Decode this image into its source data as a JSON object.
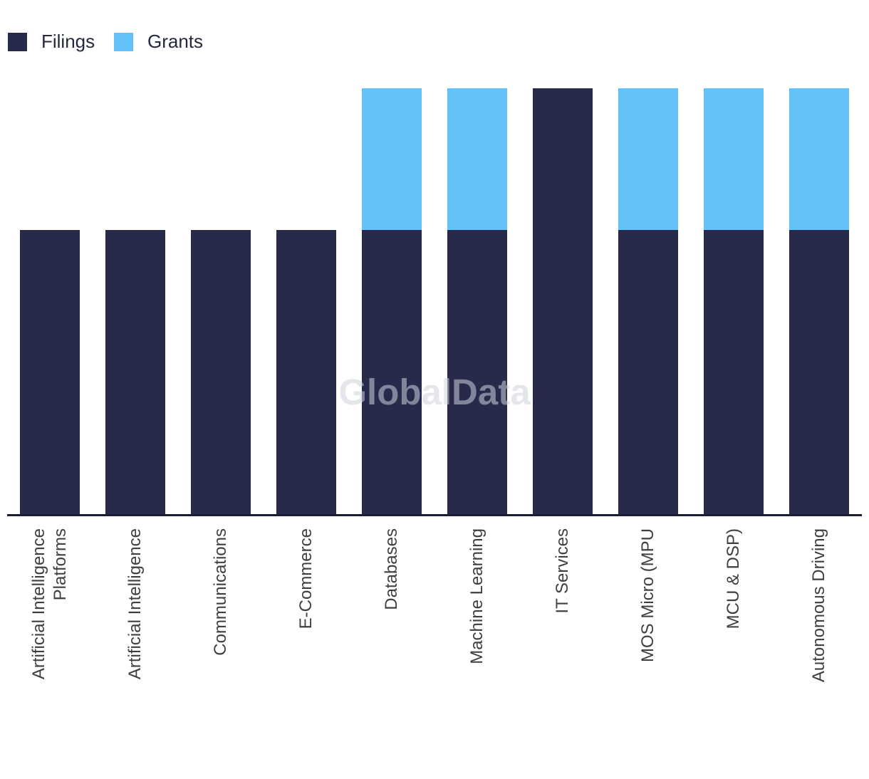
{
  "chart_data": {
    "type": "bar",
    "stacked": true,
    "title": "",
    "xlabel": "",
    "ylabel": "",
    "grid": false,
    "legend_position": "top-left",
    "watermark": "GlobalData",
    "categories": [
      "Artificial Intelligence Platforms",
      "Artificial Intelligence",
      "Communications",
      "E-Commerce",
      "Databases",
      "Machine Learning",
      "IT Services",
      "MOS Micro (MPU",
      "MCU & DSP)",
      "Autonomous Driving"
    ],
    "tick_labels": [
      "Artificial Intelligence\nPlatforms",
      "Artificial Intelligence",
      "Communications",
      "E-Commerce",
      "Databases",
      "Machine Learning",
      "IT Services",
      "MOS Micro (MPU",
      "MCU & DSP)",
      "Autonomous Driving"
    ],
    "series": [
      {
        "name": "Filings",
        "color": "#272A4B",
        "values": [
          2,
          2,
          2,
          2,
          2,
          2,
          3,
          2,
          2,
          2
        ]
      },
      {
        "name": "Grants",
        "color": "#62C1F7",
        "values": [
          0,
          0,
          0,
          0,
          1,
          1,
          0,
          1,
          1,
          1
        ]
      }
    ],
    "ylim": [
      0,
      3
    ]
  }
}
